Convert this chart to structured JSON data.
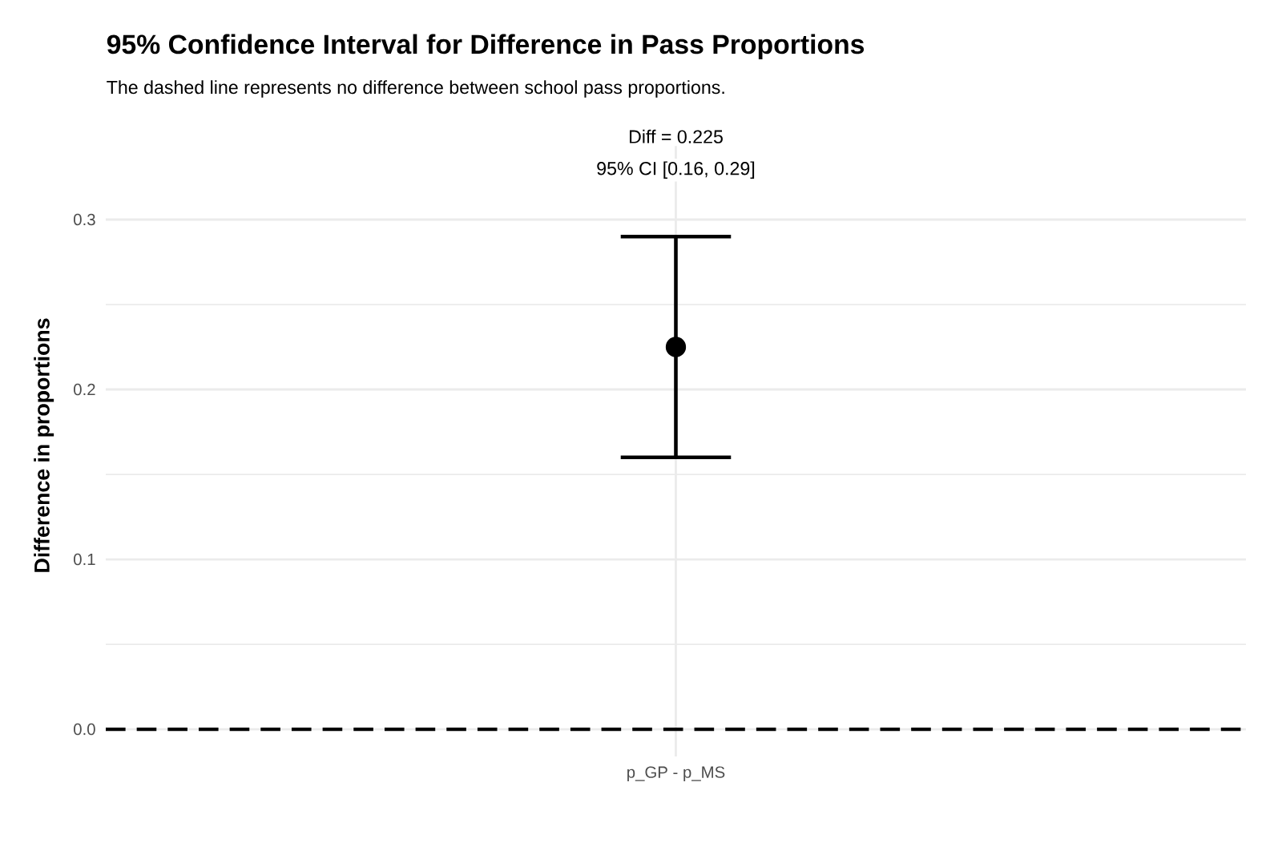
{
  "chart_data": {
    "type": "scatter",
    "title": "95% Confidence Interval for Difference in Pass Proportions",
    "subtitle": "The dashed line represents no difference between school pass proportions.",
    "ylabel": "Difference in proportions",
    "annotations": [
      "Diff = 0.225",
      "95% CI [0.16, 0.29]"
    ],
    "categories": [
      "p_GP - p_MS"
    ],
    "series": [
      {
        "color": "#000000",
        "values": [
          0.225
        ],
        "errors": [
          [
            0.16,
            0.29
          ]
        ]
      }
    ],
    "marker": "circle",
    "ylim": [
      -0.016,
      0.35
    ],
    "yticks": [
      {
        "value": 0,
        "label": "0.0"
      },
      {
        "value": 0.1,
        "label": "0.1"
      },
      {
        "value": 0.2,
        "label": "0.2"
      },
      {
        "value": 0.3,
        "label": "0.3"
      }
    ],
    "ref_lines": [
      {
        "axis": "y",
        "value": 0,
        "color": "#000000",
        "line_style": "dashed"
      }
    ],
    "grid": true
  }
}
